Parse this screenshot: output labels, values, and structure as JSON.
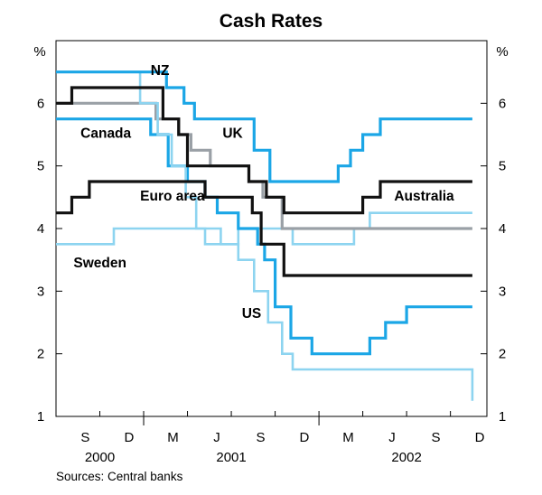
{
  "chart_data": {
    "type": "line",
    "title": "Cash Rates",
    "unit_left": "%",
    "unit_right": "%",
    "ylim": [
      1,
      7
    ],
    "y_ticks": [
      1,
      2,
      3,
      4,
      5,
      6
    ],
    "xlim": [
      2000.5,
      2002.958
    ],
    "x_ticks": [
      {
        "label": "S",
        "x": 2000.667
      },
      {
        "label": "D",
        "x": 2000.917
      },
      {
        "label": "M",
        "x": 2001.167
      },
      {
        "label": "J",
        "x": 2001.417
      },
      {
        "label": "S",
        "x": 2001.667
      },
      {
        "label": "D",
        "x": 2001.917
      },
      {
        "label": "M",
        "x": 2002.167
      },
      {
        "label": "J",
        "x": 2002.417
      },
      {
        "label": "S",
        "x": 2002.667
      },
      {
        "label": "D",
        "x": 2002.917
      }
    ],
    "years": [
      {
        "label": "2000",
        "x": 2000.75
      },
      {
        "label": "2001",
        "x": 2001.5
      },
      {
        "label": "2002",
        "x": 2002.5
      }
    ],
    "source": "Sources: Central banks",
    "colors": {
      "cyan": "#1ba6e6",
      "lightblue": "#8dd4f0",
      "grey": "#9aa0a6",
      "black": "#111111"
    },
    "series": [
      {
        "name": "Sweden",
        "color": "lightblue",
        "points": [
          [
            2000.5,
            3.75
          ],
          [
            2000.83,
            3.75
          ],
          [
            2000.83,
            4.0
          ],
          [
            2001.35,
            4.0
          ],
          [
            2001.35,
            3.75
          ],
          [
            2001.54,
            3.75
          ],
          [
            2001.54,
            4.0
          ],
          [
            2001.85,
            4.0
          ],
          [
            2001.85,
            3.75
          ],
          [
            2002.2,
            3.75
          ],
          [
            2002.2,
            4.0
          ],
          [
            2002.29,
            4.0
          ],
          [
            2002.29,
            4.25
          ],
          [
            2002.875,
            4.25
          ]
        ]
      },
      {
        "name": "UK",
        "color": "grey",
        "points": [
          [
            2000.5,
            6.0
          ],
          [
            2001.07,
            6.0
          ],
          [
            2001.07,
            5.75
          ],
          [
            2001.2,
            5.75
          ],
          [
            2001.2,
            5.5
          ],
          [
            2001.27,
            5.5
          ],
          [
            2001.27,
            5.25
          ],
          [
            2001.38,
            5.25
          ],
          [
            2001.38,
            5.0
          ],
          [
            2001.6,
            5.0
          ],
          [
            2001.6,
            4.75
          ],
          [
            2001.68,
            4.75
          ],
          [
            2001.68,
            4.5
          ],
          [
            2001.79,
            4.5
          ],
          [
            2001.79,
            4.0
          ],
          [
            2002.875,
            4.0
          ]
        ]
      },
      {
        "name": "Canada",
        "color": "cyan",
        "points": [
          [
            2000.5,
            5.75
          ],
          [
            2001.04,
            5.75
          ],
          [
            2001.04,
            5.5
          ],
          [
            2001.14,
            5.5
          ],
          [
            2001.14,
            5.0
          ],
          [
            2001.25,
            5.0
          ],
          [
            2001.25,
            4.75
          ],
          [
            2001.35,
            4.75
          ],
          [
            2001.35,
            4.5
          ],
          [
            2001.42,
            4.5
          ],
          [
            2001.42,
            4.25
          ],
          [
            2001.54,
            4.25
          ],
          [
            2001.54,
            4.0
          ],
          [
            2001.65,
            4.0
          ],
          [
            2001.65,
            3.75
          ],
          [
            2001.69,
            3.75
          ],
          [
            2001.69,
            3.5
          ],
          [
            2001.75,
            3.5
          ],
          [
            2001.75,
            2.75
          ],
          [
            2001.84,
            2.75
          ],
          [
            2001.84,
            2.25
          ],
          [
            2001.96,
            2.25
          ],
          [
            2001.96,
            2.0
          ],
          [
            2002.29,
            2.0
          ],
          [
            2002.29,
            2.25
          ],
          [
            2002.38,
            2.25
          ],
          [
            2002.38,
            2.5
          ],
          [
            2002.5,
            2.5
          ],
          [
            2002.5,
            2.75
          ],
          [
            2002.875,
            2.75
          ]
        ]
      },
      {
        "name": "US",
        "color": "lightblue",
        "points": [
          [
            2000.5,
            6.5
          ],
          [
            2000.98,
            6.5
          ],
          [
            2000.98,
            6.0
          ],
          [
            2001.08,
            6.0
          ],
          [
            2001.08,
            5.5
          ],
          [
            2001.16,
            5.5
          ],
          [
            2001.16,
            5.0
          ],
          [
            2001.24,
            5.0
          ],
          [
            2001.24,
            4.5
          ],
          [
            2001.3,
            4.5
          ],
          [
            2001.3,
            4.0
          ],
          [
            2001.44,
            4.0
          ],
          [
            2001.44,
            3.75
          ],
          [
            2001.54,
            3.75
          ],
          [
            2001.54,
            3.5
          ],
          [
            2001.63,
            3.5
          ],
          [
            2001.63,
            3.0
          ],
          [
            2001.71,
            3.0
          ],
          [
            2001.71,
            2.5
          ],
          [
            2001.79,
            2.5
          ],
          [
            2001.79,
            2.0
          ],
          [
            2001.85,
            2.0
          ],
          [
            2001.85,
            1.75
          ],
          [
            2002.875,
            1.75
          ],
          [
            2002.875,
            1.25
          ]
        ]
      },
      {
        "name": "NZ",
        "color": "cyan",
        "points": [
          [
            2000.5,
            6.5
          ],
          [
            2001.13,
            6.5
          ],
          [
            2001.13,
            6.25
          ],
          [
            2001.23,
            6.25
          ],
          [
            2001.23,
            6.0
          ],
          [
            2001.29,
            6.0
          ],
          [
            2001.29,
            5.75
          ],
          [
            2001.63,
            5.75
          ],
          [
            2001.63,
            5.25
          ],
          [
            2001.72,
            5.25
          ],
          [
            2001.72,
            4.75
          ],
          [
            2002.11,
            4.75
          ],
          [
            2002.11,
            5.0
          ],
          [
            2002.18,
            5.0
          ],
          [
            2002.18,
            5.25
          ],
          [
            2002.25,
            5.25
          ],
          [
            2002.25,
            5.5
          ],
          [
            2002.35,
            5.5
          ],
          [
            2002.35,
            5.75
          ],
          [
            2002.875,
            5.75
          ]
        ]
      },
      {
        "name": "Euro area",
        "color": "black",
        "points": [
          [
            2000.5,
            4.25
          ],
          [
            2000.59,
            4.25
          ],
          [
            2000.59,
            4.5
          ],
          [
            2000.69,
            4.5
          ],
          [
            2000.69,
            4.75
          ],
          [
            2001.35,
            4.75
          ],
          [
            2001.35,
            4.5
          ],
          [
            2001.62,
            4.5
          ],
          [
            2001.62,
            4.25
          ],
          [
            2001.67,
            4.25
          ],
          [
            2001.67,
            3.75
          ],
          [
            2001.8,
            3.75
          ],
          [
            2001.8,
            3.25
          ],
          [
            2002.875,
            3.25
          ]
        ]
      },
      {
        "name": "Australia",
        "color": "black",
        "points": [
          [
            2000.5,
            6.0
          ],
          [
            2000.59,
            6.0
          ],
          [
            2000.59,
            6.25
          ],
          [
            2001.11,
            6.25
          ],
          [
            2001.11,
            5.75
          ],
          [
            2001.2,
            5.75
          ],
          [
            2001.2,
            5.5
          ],
          [
            2001.25,
            5.5
          ],
          [
            2001.25,
            5.0
          ],
          [
            2001.6,
            5.0
          ],
          [
            2001.6,
            4.75
          ],
          [
            2001.7,
            4.75
          ],
          [
            2001.7,
            4.5
          ],
          [
            2001.8,
            4.5
          ],
          [
            2001.8,
            4.25
          ],
          [
            2002.25,
            4.25
          ],
          [
            2002.25,
            4.5
          ],
          [
            2002.35,
            4.5
          ],
          [
            2002.35,
            4.75
          ],
          [
            2002.875,
            4.75
          ]
        ]
      }
    ],
    "labels": [
      {
        "text": "NZ",
        "series": "NZ",
        "x": 2001.04,
        "y": 6.45
      },
      {
        "text": "UK",
        "series": "UK",
        "x": 2001.45,
        "y": 5.45
      },
      {
        "text": "Canada",
        "series": "Canada",
        "x": 2000.64,
        "y": 5.45
      },
      {
        "text": "Euro area",
        "series": "Euro area",
        "x": 2000.98,
        "y": 4.45
      },
      {
        "text": "Australia",
        "series": "Australia",
        "x": 2002.6,
        "y": 4.45
      },
      {
        "text": "Sweden",
        "series": "Sweden",
        "x": 2000.6,
        "y": 3.38
      },
      {
        "text": "US",
        "series": "US",
        "x": 2001.56,
        "y": 2.57
      }
    ]
  }
}
